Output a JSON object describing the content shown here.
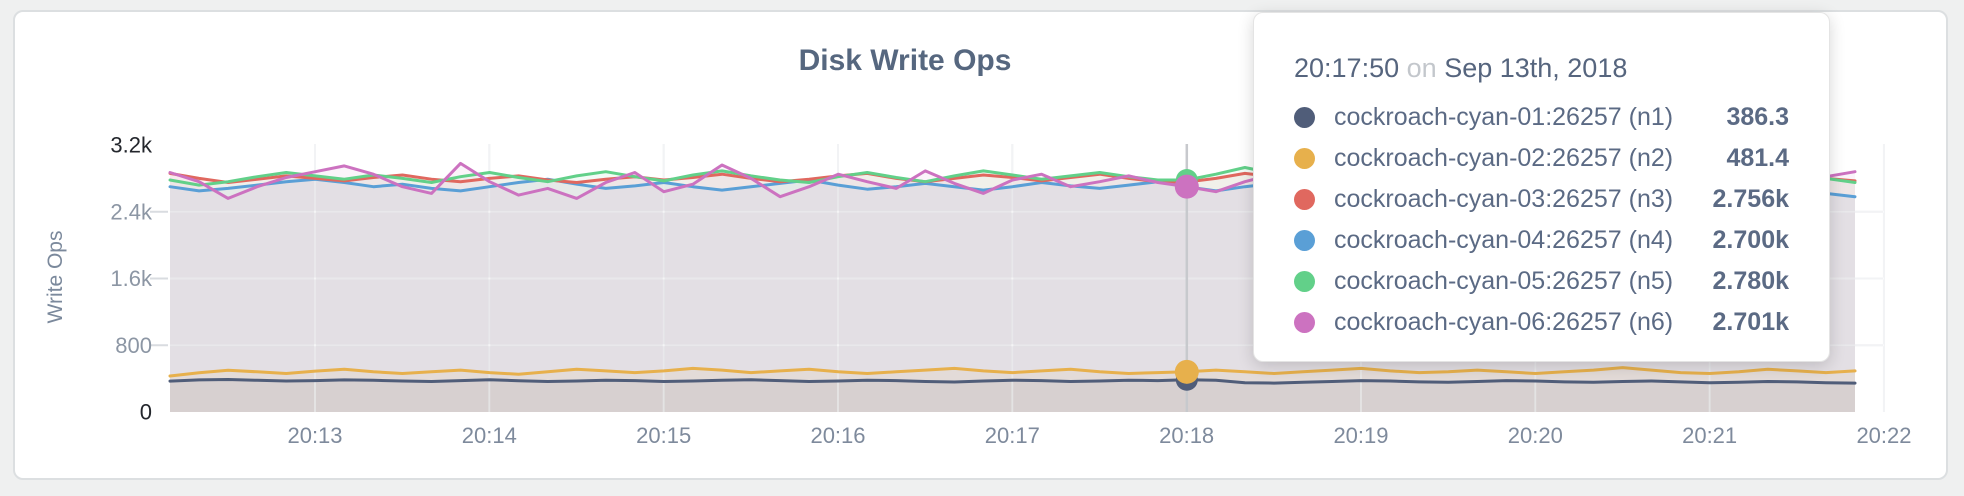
{
  "card": {
    "title": "Disk Write Ops"
  },
  "chart_data": {
    "type": "line",
    "title": "Disk Write Ops",
    "xlabel": "",
    "ylabel": "Write Ops",
    "ylim": [
      0,
      3200
    ],
    "grid": true,
    "legend_position": "tooltip-overlay",
    "y_ticks": [
      {
        "label": "3.2k",
        "value": 3200,
        "emphasis": true
      },
      {
        "label": "2.4k",
        "value": 2400,
        "emphasis": false
      },
      {
        "label": "1.6k",
        "value": 1600,
        "emphasis": false
      },
      {
        "label": "800",
        "value": 800,
        "emphasis": false
      },
      {
        "label": "0",
        "value": 0,
        "emphasis": true
      }
    ],
    "x_ticks": [
      "20:13",
      "20:14",
      "20:15",
      "20:16",
      "20:17",
      "20:18",
      "20:19",
      "20:20",
      "20:21",
      "20:22"
    ],
    "x_start_time": "20:12:10",
    "x_step_seconds": 10,
    "hover_index": 35,
    "hover_time": "20:17:50",
    "series": [
      {
        "name": "cockroach-cyan-01:26257 (n1)",
        "color": "#505d79",
        "values": [
          370,
          385,
          390,
          380,
          372,
          376,
          385,
          380,
          371,
          365,
          376,
          386,
          375,
          366,
          371,
          381,
          376,
          366,
          371,
          381,
          386,
          376,
          366,
          371,
          381,
          376,
          366,
          360,
          371,
          381,
          376,
          366,
          371,
          381,
          376,
          386.3,
          381,
          351,
          346,
          356,
          366,
          376,
          371,
          361,
          356,
          366,
          376,
          371,
          361,
          356,
          366,
          371,
          361,
          351,
          356,
          366,
          361,
          351,
          346
        ]
      },
      {
        "name": "cockroach-cyan-02:26257 (n2)",
        "color": "#e7b04c",
        "values": [
          432,
          470,
          500,
          482,
          462,
          490,
          512,
          482,
          462,
          482,
          502,
          472,
          452,
          482,
          512,
          492,
          472,
          492,
          522,
          502,
          472,
          492,
          512,
          482,
          462,
          482,
          502,
          522,
          492,
          472,
          492,
          512,
          482,
          462,
          472,
          481.4,
          502,
          482,
          462,
          482,
          502,
          522,
          492,
          472,
          482,
          502,
          482,
          462,
          482,
          502,
          532,
          502,
          472,
          462,
          482,
          512,
          492,
          472,
          492
        ]
      },
      {
        "name": "cockroach-cyan-03:26257 (n3)",
        "color": "#e0685f",
        "values": [
          2860,
          2800,
          2750,
          2790,
          2830,
          2800,
          2770,
          2810,
          2840,
          2790,
          2760,
          2800,
          2830,
          2780,
          2750,
          2790,
          2820,
          2780,
          2810,
          2850,
          2800,
          2760,
          2790,
          2830,
          2860,
          2800,
          2760,
          2800,
          2840,
          2810,
          2770,
          2810,
          2850,
          2800,
          2760,
          2756,
          2800,
          2860,
          2820,
          2780,
          2810,
          2840,
          2790,
          2750,
          2790,
          2830,
          2800,
          2770,
          2800,
          2840,
          2800,
          2760,
          2730,
          2790,
          2830,
          2800,
          2840,
          2800,
          2770
        ]
      },
      {
        "name": "cockroach-cyan-04:26257 (n4)",
        "color": "#5a9fd6",
        "values": [
          2700,
          2650,
          2680,
          2720,
          2760,
          2790,
          2750,
          2700,
          2730,
          2680,
          2650,
          2700,
          2750,
          2790,
          2730,
          2680,
          2710,
          2750,
          2700,
          2660,
          2700,
          2740,
          2780,
          2720,
          2670,
          2700,
          2740,
          2700,
          2660,
          2700,
          2750,
          2710,
          2680,
          2720,
          2760,
          2700,
          2650,
          2700,
          2740,
          2780,
          2730,
          2690,
          2720,
          2760,
          2710,
          2670,
          2700,
          2740,
          2700,
          2660,
          2700,
          2730,
          2700,
          2670,
          2710,
          2750,
          2700,
          2620,
          2580
        ]
      },
      {
        "name": "cockroach-cyan-05:26257 (n5)",
        "color": "#62d089",
        "values": [
          2780,
          2720,
          2760,
          2820,
          2870,
          2830,
          2790,
          2840,
          2800,
          2750,
          2820,
          2870,
          2810,
          2760,
          2830,
          2880,
          2820,
          2770,
          2840,
          2890,
          2830,
          2780,
          2750,
          2820,
          2870,
          2810,
          2760,
          2830,
          2890,
          2840,
          2790,
          2830,
          2870,
          2820,
          2780,
          2780,
          2850,
          2930,
          2860,
          2800,
          2770,
          2830,
          2800,
          2760,
          2820,
          2870,
          2830,
          2780,
          2810,
          2860,
          2820,
          2780,
          2820,
          2880,
          2840,
          2970,
          2890,
          2800,
          2750
        ]
      },
      {
        "name": "cockroach-cyan-06:26257 (n6)",
        "color": "#cc72c0",
        "values": [
          2870,
          2760,
          2560,
          2700,
          2810,
          2880,
          2950,
          2850,
          2700,
          2620,
          2980,
          2760,
          2600,
          2680,
          2560,
          2750,
          2870,
          2640,
          2730,
          2960,
          2800,
          2580,
          2700,
          2850,
          2760,
          2680,
          2890,
          2740,
          2620,
          2780,
          2850,
          2700,
          2760,
          2830,
          2750,
          2701,
          2640,
          2760,
          2850,
          2920,
          2780,
          2650,
          2750,
          2820,
          2700,
          2600,
          2750,
          2880,
          2790,
          2680,
          2760,
          2700,
          2650,
          3000,
          2850,
          2700,
          2600,
          2820,
          2880
        ]
      }
    ]
  },
  "tooltip": {
    "time": "20:17:50",
    "on_word": "on",
    "date": "Sep 13th, 2018",
    "rows": [
      {
        "label": "cockroach-cyan-01:26257 (n1)",
        "value": "386.3"
      },
      {
        "label": "cockroach-cyan-02:26257 (n2)",
        "value": "481.4"
      },
      {
        "label": "cockroach-cyan-03:26257 (n3)",
        "value": "2.756k"
      },
      {
        "label": "cockroach-cyan-04:26257 (n4)",
        "value": "2.700k"
      },
      {
        "label": "cockroach-cyan-05:26257 (n5)",
        "value": "2.780k"
      },
      {
        "label": "cockroach-cyan-06:26257 (n6)",
        "value": "2.701k"
      }
    ]
  }
}
